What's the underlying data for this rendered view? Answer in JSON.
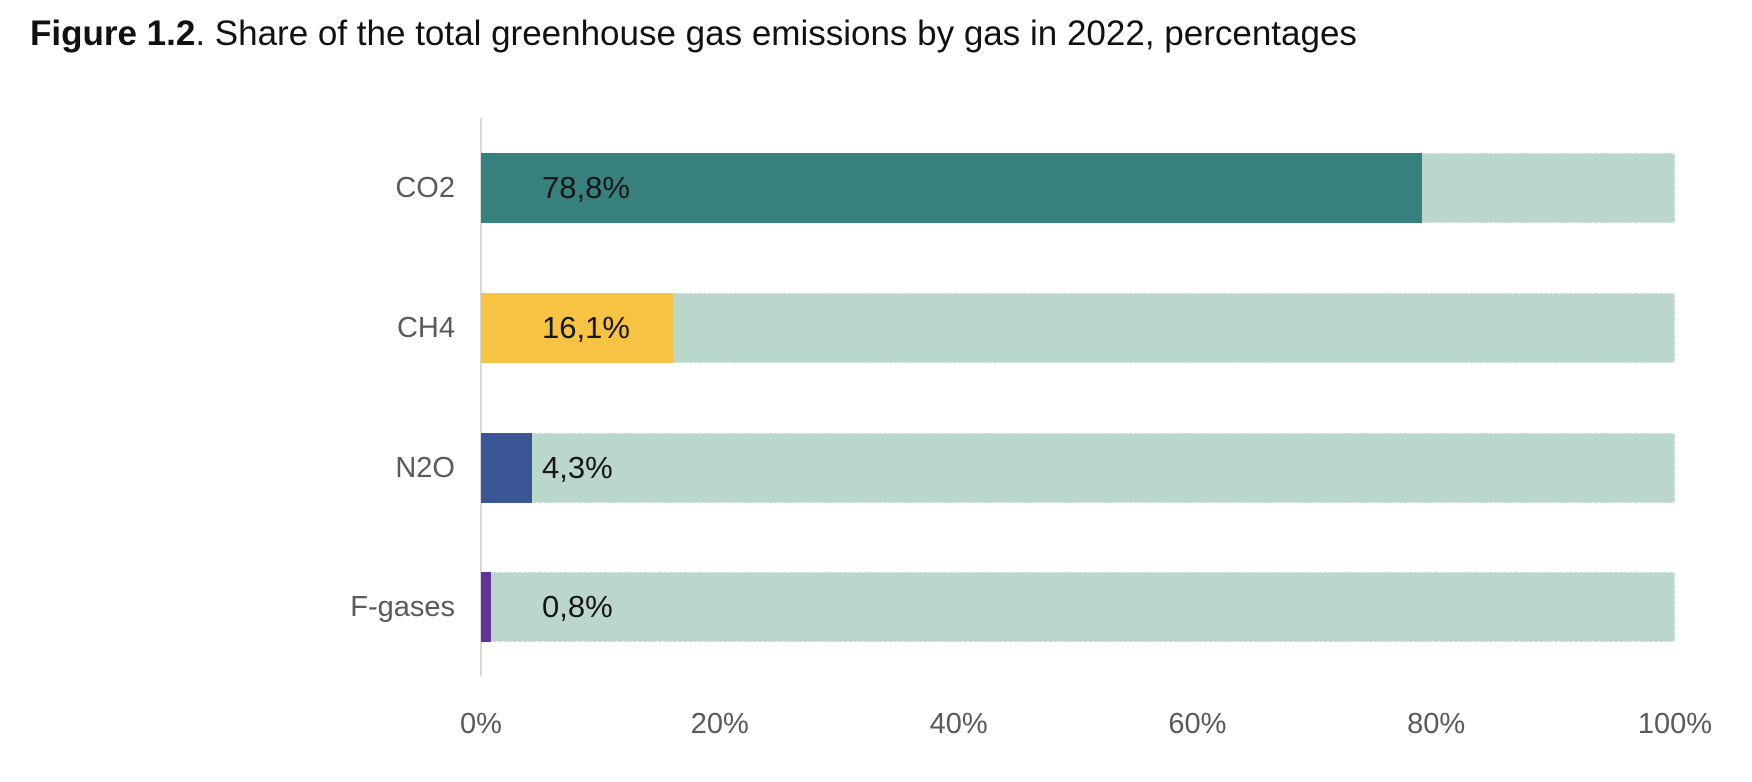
{
  "title": {
    "prefix": "Figure 1.2",
    "rest": ". Share of the total greenhouse gas emissions by gas in 2022, percentages"
  },
  "chart_data": {
    "type": "bar",
    "orientation": "horizontal",
    "title": "Figure 1.2. Share of the total greenhouse gas emissions by gas in 2022, percentages",
    "categories": [
      "CO2",
      "CH4",
      "N2O",
      "F-gases"
    ],
    "values": [
      78.8,
      16.1,
      4.3,
      0.8
    ],
    "value_labels": [
      "78,8%",
      "16,1%",
      "4,3%",
      "0,8%"
    ],
    "xlabel": "",
    "ylabel": "",
    "xlim": [
      0,
      100
    ],
    "x_ticks": [
      {
        "value": 0,
        "label": "0%"
      },
      {
        "value": 20,
        "label": "20%"
      },
      {
        "value": 40,
        "label": "40%"
      },
      {
        "value": 60,
        "label": "60%"
      },
      {
        "value": 80,
        "label": "80%"
      },
      {
        "value": 100,
        "label": "100%"
      }
    ],
    "grid": false,
    "legend": "none",
    "bar_colors": [
      "#38807E",
      "#F6C342",
      "#3A5694",
      "#5F3399"
    ],
    "track_color": "#BBD7CB",
    "colors": {
      "axis_line": "#D9D9D9",
      "tick_text": "#5A5A5A",
      "category_text": "#5A5A5A",
      "value_text": "#161616",
      "title_text": "#111111"
    }
  }
}
